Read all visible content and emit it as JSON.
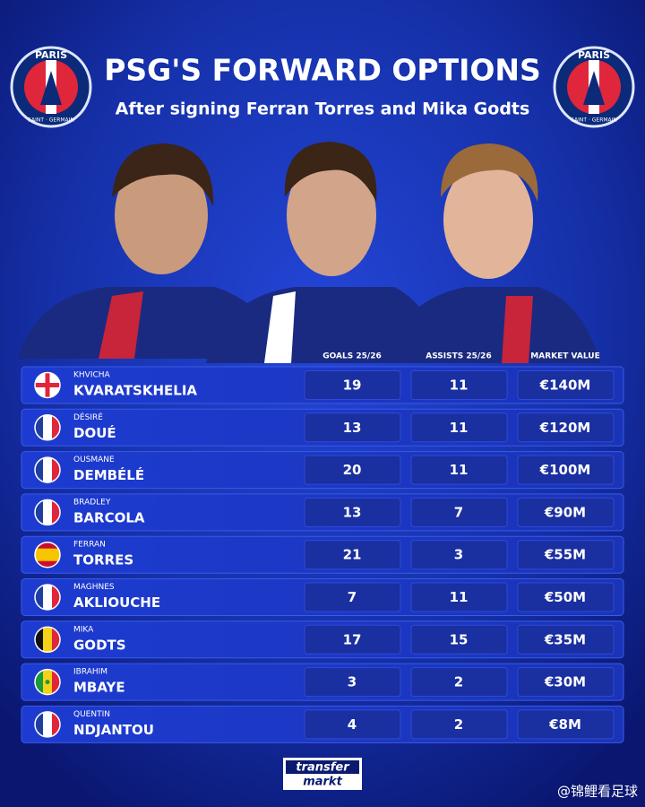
{
  "crest": {
    "top": "PARIS",
    "bottom": "SAINT · GERMAIN"
  },
  "header": {
    "title": "PSG'S FORWARD OPTIONS",
    "subtitle": "After signing Ferran Torres and Mika Godts"
  },
  "table": {
    "columns": [
      "GOALS 25/26",
      "ASSISTS 25/26",
      "MARKET VALUE"
    ],
    "rows": [
      {
        "first": "KHVICHA",
        "last": "KVARATSKHELIA",
        "goals": 19,
        "assists": 11,
        "value": "€140M"
      },
      {
        "first": "DÉSIRÉ",
        "last": "DOUÉ",
        "goals": 13,
        "assists": 11,
        "value": "€120M"
      },
      {
        "first": "OUSMANE",
        "last": "DEMBÉLÉ",
        "goals": 20,
        "assists": 11,
        "value": "€100M"
      },
      {
        "first": "BRADLEY",
        "last": "BARCOLA",
        "goals": 13,
        "assists": 7,
        "value": "€90M"
      },
      {
        "first": "FERRAN",
        "last": "TORRES",
        "goals": 21,
        "assists": 3,
        "value": "€55M"
      },
      {
        "first": "MAGHNES",
        "last": "AKLIOUCHE",
        "goals": 7,
        "assists": 11,
        "value": "€50M"
      },
      {
        "first": "MIKA",
        "last": "GODTS",
        "goals": 17,
        "assists": 15,
        "value": "€35M"
      },
      {
        "first": "IBRAHIM",
        "last": "MBAYE",
        "goals": 3,
        "assists": 2,
        "value": "€30M"
      },
      {
        "first": "QUENTIN",
        "last": "NDJANTOU",
        "goals": 4,
        "assists": 2,
        "value": "€8M"
      }
    ]
  },
  "footer": {
    "logo_top": "transfer",
    "logo_bottom": "markt",
    "watermark": "@锦鲤看足球"
  }
}
